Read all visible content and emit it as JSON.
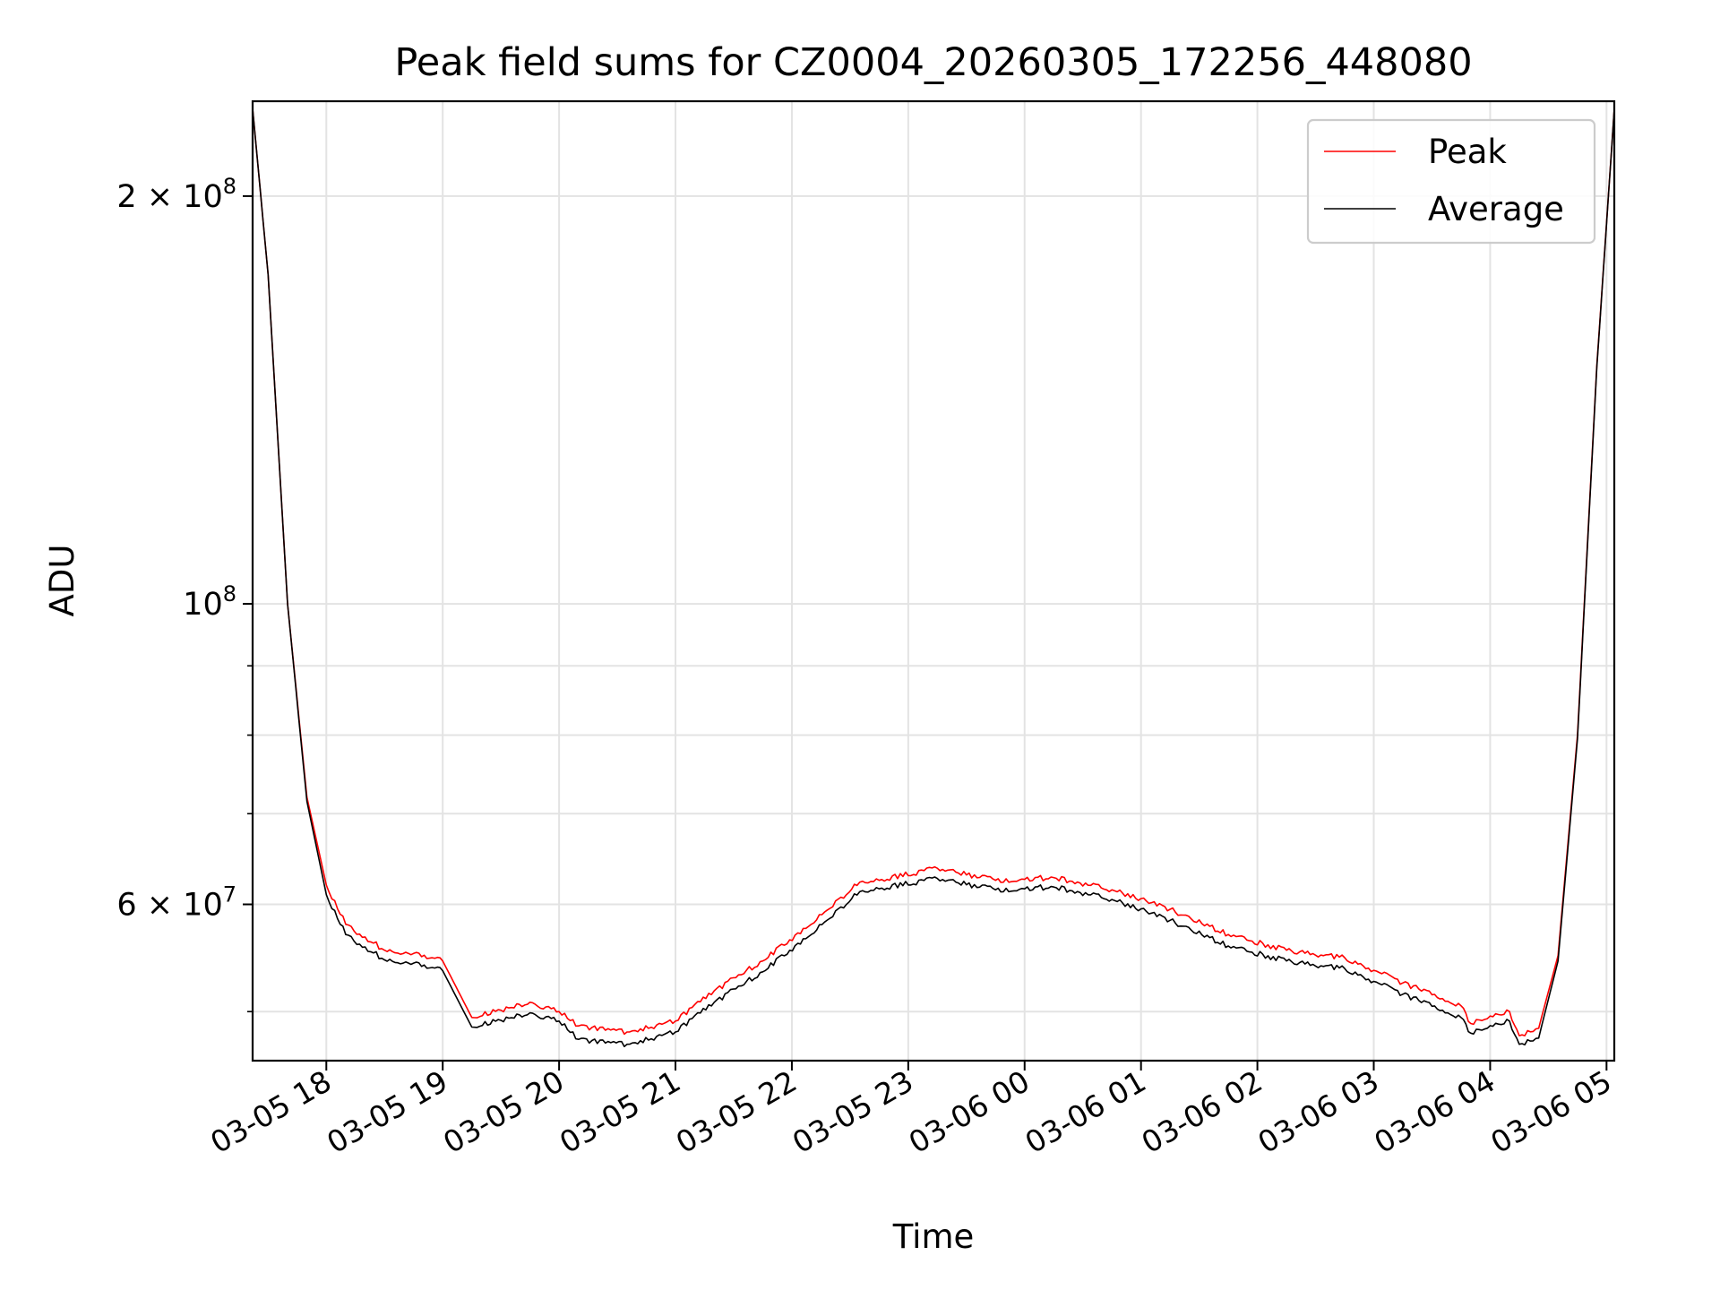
{
  "chart_data": {
    "type": "line",
    "title": "Peak field sums for CZ0004_20260305_172256_448080",
    "xlabel": "Time",
    "ylabel": "ADU",
    "y_scale": "log",
    "ylim": [
      46000000,
      235000000
    ],
    "xlim": [
      "2026-03-05 17:22",
      "2026-03-06 05:04"
    ],
    "grid": true,
    "legend_position": "upper right",
    "x_tick_labels": [
      "03-05 18",
      "03-05 19",
      "03-05 20",
      "03-05 21",
      "03-05 22",
      "03-05 23",
      "03-06 00",
      "03-06 01",
      "03-06 02",
      "03-06 03",
      "03-06 04",
      "03-06 05"
    ],
    "y_tick_labels": [
      {
        "value": 200000000,
        "mantissa": "2",
        "times": "×",
        "base": "10",
        "exp": "8"
      },
      {
        "value": 100000000,
        "mantissa": "",
        "times": "",
        "base": "10",
        "exp": "8"
      },
      {
        "value": 60000000,
        "mantissa": "6",
        "times": "×",
        "base": "10",
        "exp": "7"
      }
    ],
    "x": [
      "2026-03-05 17:22",
      "2026-03-05 17:30",
      "2026-03-05 17:40",
      "2026-03-05 17:50",
      "2026-03-05 18:00",
      "2026-03-05 18:10",
      "2026-03-05 18:30",
      "2026-03-05 18:45",
      "2026-03-05 19:00",
      "2026-03-05 19:15",
      "2026-03-05 19:45",
      "2026-03-05 20:00",
      "2026-03-05 20:10",
      "2026-03-05 20:35",
      "2026-03-05 21:00",
      "2026-03-05 21:20",
      "2026-03-05 21:45",
      "2026-03-05 22:10",
      "2026-03-05 22:35",
      "2026-03-05 22:45",
      "2026-03-05 23:15",
      "2026-03-05 23:45",
      "2026-03-06 00:15",
      "2026-03-06 00:45",
      "2026-03-06 01:15",
      "2026-03-06 01:45",
      "2026-03-06 02:15",
      "2026-03-06 02:45",
      "2026-03-06 03:15",
      "2026-03-06 03:45",
      "2026-03-06 03:50",
      "2026-03-06 04:10",
      "2026-03-06 04:15",
      "2026-03-06 04:25",
      "2026-03-06 04:35",
      "2026-03-06 04:45",
      "2026-03-06 04:55",
      "2026-03-06 05:04"
    ],
    "series": [
      {
        "name": "Peak",
        "color": "#ff0000",
        "values": [
          232000000,
          175000000,
          100000000,
          72000000,
          62000000,
          58000000,
          55500000,
          55200000,
          54500000,
          49500000,
          50800000,
          50000000,
          48800000,
          48300000,
          49200000,
          51800000,
          54500000,
          58000000,
          62300000,
          62500000,
          63800000,
          62500000,
          62800000,
          61500000,
          59500000,
          57000000,
          55500000,
          54800000,
          52500000,
          50500000,
          49000000,
          50000000,
          48000000,
          48600000,
          55000000,
          80000000,
          150000000,
          232000000
        ]
      },
      {
        "name": "Average",
        "color": "#000000",
        "values": [
          232000000,
          175000000,
          100000000,
          71500000,
          61000000,
          57000000,
          54600000,
          54300000,
          53600000,
          48700000,
          49900000,
          49200000,
          47700000,
          47300000,
          48300000,
          50800000,
          53500000,
          57000000,
          61300000,
          61600000,
          62700000,
          61500000,
          61800000,
          60500000,
          58400000,
          55900000,
          54500000,
          53800000,
          51500000,
          49500000,
          48200000,
          49200000,
          47300000,
          47800000,
          54500000,
          79500000,
          149500000,
          232000000
        ]
      }
    ]
  }
}
